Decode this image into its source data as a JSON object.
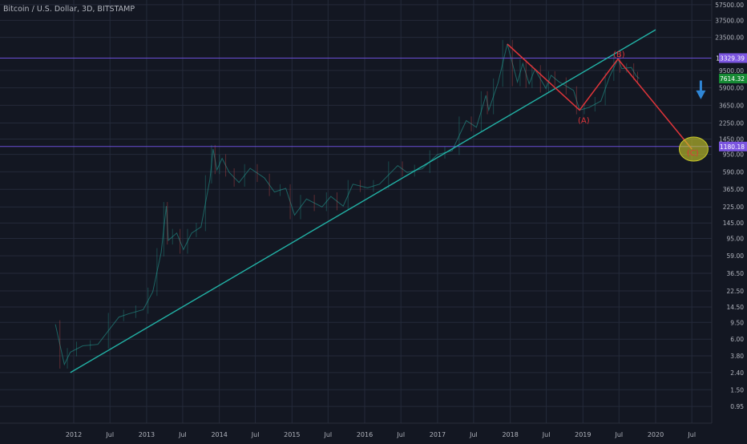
{
  "header": {
    "title": "Bitcoin / U.S. Dollar, 3D, BITSTAMP"
  },
  "chart_data": {
    "type": "line",
    "title": "Bitcoin / U.S. Dollar, 3D, BITSTAMP",
    "y_scale": "log",
    "ylim": [
      0.6,
      60000
    ],
    "xlim": [
      "2011-08-01",
      "2020-12-15"
    ],
    "grid": true,
    "y_ticks": [
      "57500.00",
      "37500.00",
      "23500.00",
      "9500.00",
      "5900.00",
      "3650.00",
      "2250.00",
      "1450.00",
      "950.00",
      "590.00",
      "365.00",
      "225.00",
      "145.00",
      "95.00",
      "59.00",
      "36.50",
      "22.50",
      "14.50",
      "9.50",
      "6.00",
      "3.80",
      "2.40",
      "1.50",
      "0.95"
    ],
    "x_ticks": [
      {
        "label": "2012",
        "date": "2012-01-01"
      },
      {
        "label": "Jul",
        "date": "2012-07-01"
      },
      {
        "label": "2013",
        "date": "2013-01-01"
      },
      {
        "label": "Jul",
        "date": "2013-07-01"
      },
      {
        "label": "2014",
        "date": "2014-01-01"
      },
      {
        "label": "Jul",
        "date": "2014-07-01"
      },
      {
        "label": "2015",
        "date": "2015-01-01"
      },
      {
        "label": "Jul",
        "date": "2015-07-01"
      },
      {
        "label": "2016",
        "date": "2016-01-01"
      },
      {
        "label": "Jul",
        "date": "2016-07-01"
      },
      {
        "label": "2017",
        "date": "2017-01-01"
      },
      {
        "label": "Jul",
        "date": "2017-07-01"
      },
      {
        "label": "2018",
        "date": "2018-01-01"
      },
      {
        "label": "Jul",
        "date": "2018-07-01"
      },
      {
        "label": "2019",
        "date": "2019-01-01"
      },
      {
        "label": "Jul",
        "date": "2019-07-01"
      },
      {
        "label": "2020",
        "date": "2020-01-01"
      },
      {
        "label": "Jul",
        "date": "2020-07-01"
      }
    ],
    "series": [
      {
        "color": "#26a69a",
        "points": [
          [
            "2011-10-01",
            9
          ],
          [
            "2011-11-15",
            3
          ],
          [
            "2011-12-15",
            4.2
          ],
          [
            "2012-02-15",
            5
          ],
          [
            "2012-05-01",
            5.2
          ],
          [
            "2012-08-15",
            11
          ],
          [
            "2012-10-01",
            12
          ],
          [
            "2012-12-15",
            13.5
          ],
          [
            "2013-02-01",
            22
          ],
          [
            "2013-03-15",
            65
          ],
          [
            "2013-04-10",
            230
          ],
          [
            "2013-04-20",
            90
          ],
          [
            "2013-06-01",
            110
          ],
          [
            "2013-07-05",
            70
          ],
          [
            "2013-08-15",
            110
          ],
          [
            "2013-10-01",
            130
          ],
          [
            "2013-11-15",
            480
          ],
          [
            "2013-12-01",
            1100
          ],
          [
            "2013-12-20",
            620
          ],
          [
            "2014-01-15",
            850
          ],
          [
            "2014-02-20",
            580
          ],
          [
            "2014-04-10",
            440
          ],
          [
            "2014-06-05",
            650
          ],
          [
            "2014-08-15",
            500
          ],
          [
            "2014-10-05",
            340
          ],
          [
            "2014-12-01",
            375
          ],
          [
            "2015-01-14",
            180
          ],
          [
            "2015-03-15",
            280
          ],
          [
            "2015-06-01",
            225
          ],
          [
            "2015-07-15",
            300
          ],
          [
            "2015-09-15",
            230
          ],
          [
            "2015-11-03",
            420
          ],
          [
            "2016-01-15",
            380
          ],
          [
            "2016-03-15",
            420
          ],
          [
            "2016-06-15",
            700
          ],
          [
            "2016-08-01",
            580
          ],
          [
            "2016-10-15",
            640
          ],
          [
            "2017-01-01",
            950
          ],
          [
            "2017-03-15",
            1050
          ],
          [
            "2017-05-25",
            2400
          ],
          [
            "2017-07-15",
            2000
          ],
          [
            "2017-09-01",
            4800
          ],
          [
            "2017-09-15",
            3200
          ],
          [
            "2017-11-01",
            6800
          ],
          [
            "2017-12-17",
            19600
          ],
          [
            "2018-02-06",
            6900
          ],
          [
            "2018-03-05",
            11500
          ],
          [
            "2018-04-06",
            6600
          ],
          [
            "2018-05-05",
            9800
          ],
          [
            "2018-06-29",
            5800
          ],
          [
            "2018-07-25",
            8300
          ],
          [
            "2018-09-01",
            7000
          ],
          [
            "2018-11-15",
            5500
          ],
          [
            "2018-12-15",
            3200
          ],
          [
            "2019-02-01",
            3450
          ],
          [
            "2019-04-01",
            4100
          ],
          [
            "2019-05-15",
            8000
          ],
          [
            "2019-06-26",
            13000
          ],
          [
            "2019-07-15",
            10000
          ],
          [
            "2019-09-01",
            10300
          ],
          [
            "2019-09-25",
            8200
          ],
          [
            "2019-10-10",
            7614
          ]
        ]
      }
    ],
    "price_levels": [
      {
        "label": "13329.39",
        "value": 13329.39,
        "color": "#7b55e0"
      },
      {
        "label": "7614.32",
        "value": 7614.32,
        "color": "#168a34"
      },
      {
        "label": "1180.18",
        "value": 1180.18,
        "color": "#7b55e0"
      }
    ],
    "trendline": {
      "color": "#22b2a6",
      "from": [
        "2011-12-15",
        2.4
      ],
      "to": [
        "2020-01-01",
        29000
      ]
    },
    "wave": {
      "color": "#e0353a",
      "points": [
        [
          "2017-12-17",
          19600
        ],
        [
          "2018-12-15",
          3200
        ],
        [
          "2019-06-26",
          13000
        ],
        [
          "2020-07-01",
          1100
        ]
      ],
      "labels": [
        {
          "text": "(A)",
          "date": "2019-01-05",
          "value": 2250
        },
        {
          "text": "(B)",
          "date": "2019-07-01",
          "value": 13800
        },
        {
          "text": "(C)",
          "date": "2020-07-05",
          "value": 920
        }
      ]
    },
    "target_zone": {
      "date": "2020-07-10",
      "value": 1100,
      "color": "#c9c92a"
    },
    "arrow": {
      "color": "#2f86d6",
      "date": "2020-08-15",
      "from_value": 7200,
      "to_value": 4700
    }
  }
}
